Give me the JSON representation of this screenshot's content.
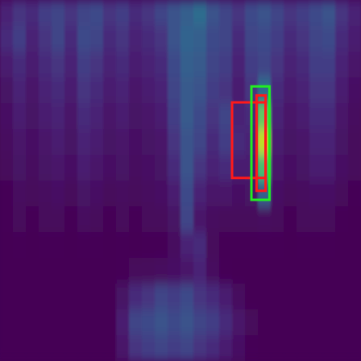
{
  "chart_data": {
    "type": "heatmap",
    "tick_labels": false,
    "xlim": [
      0,
      28
    ],
    "ylim": [
      14,
      0
    ],
    "color_range": [
      0,
      1
    ],
    "cells": [
      [
        0.1,
        0.15,
        0.12,
        0.18,
        0.2,
        0.15,
        0.2,
        0.22,
        0.15,
        0.18,
        0.12,
        0.15,
        0.2,
        0.25,
        0.3,
        0.35,
        0.25,
        0.2,
        0.15,
        0.22,
        0.25,
        0.2,
        0.15,
        0.18,
        0.22,
        0.25,
        0.15,
        0.1
      ],
      [
        0.12,
        0.18,
        0.1,
        0.15,
        0.2,
        0.12,
        0.22,
        0.2,
        0.12,
        0.15,
        0.1,
        0.12,
        0.15,
        0.25,
        0.32,
        0.3,
        0.22,
        0.2,
        0.12,
        0.2,
        0.22,
        0.18,
        0.12,
        0.15,
        0.2,
        0.22,
        0.12,
        0.08
      ],
      [
        0.08,
        0.12,
        0.08,
        0.12,
        0.15,
        0.1,
        0.18,
        0.15,
        0.1,
        0.12,
        0.08,
        0.1,
        0.12,
        0.22,
        0.3,
        0.28,
        0.2,
        0.18,
        0.1,
        0.18,
        0.2,
        0.15,
        0.1,
        0.12,
        0.18,
        0.18,
        0.1,
        0.06
      ],
      [
        0.05,
        0.1,
        0.06,
        0.1,
        0.12,
        0.08,
        0.15,
        0.12,
        0.08,
        0.1,
        0.06,
        0.08,
        0.1,
        0.2,
        0.28,
        0.25,
        0.18,
        0.15,
        0.08,
        0.15,
        0.35,
        0.12,
        0.08,
        0.1,
        0.15,
        0.15,
        0.08,
        0.04
      ],
      [
        0.04,
        0.08,
        0.05,
        0.08,
        0.1,
        0.06,
        0.12,
        0.1,
        0.06,
        0.08,
        0.05,
        0.06,
        0.08,
        0.18,
        0.28,
        0.22,
        0.15,
        0.2,
        0.1,
        0.12,
        0.75,
        0.1,
        0.06,
        0.08,
        0.12,
        0.12,
        0.06,
        0.03
      ],
      [
        0.03,
        0.06,
        0.04,
        0.06,
        0.08,
        0.05,
        0.1,
        0.08,
        0.05,
        0.06,
        0.04,
        0.05,
        0.06,
        0.15,
        0.25,
        0.2,
        0.12,
        0.18,
        0.12,
        0.1,
        0.9,
        0.08,
        0.05,
        0.06,
        0.1,
        0.1,
        0.05,
        0.02
      ],
      [
        0.02,
        0.05,
        0.03,
        0.05,
        0.06,
        0.04,
        0.08,
        0.06,
        0.04,
        0.05,
        0.03,
        0.04,
        0.05,
        0.12,
        0.25,
        0.15,
        0.1,
        0.12,
        0.08,
        0.08,
        0.7,
        0.06,
        0.04,
        0.05,
        0.08,
        0.08,
        0.04,
        0.02
      ],
      [
        0.01,
        0.03,
        0.02,
        0.03,
        0.04,
        0.02,
        0.05,
        0.04,
        0.02,
        0.03,
        0.02,
        0.03,
        0.04,
        0.08,
        0.22,
        0.1,
        0.06,
        0.06,
        0.04,
        0.05,
        0.3,
        0.04,
        0.02,
        0.03,
        0.04,
        0.04,
        0.02,
        0.01
      ],
      [
        0.01,
        0.02,
        0.01,
        0.02,
        0.02,
        0.01,
        0.03,
        0.02,
        0.01,
        0.02,
        0.01,
        0.02,
        0.02,
        0.05,
        0.2,
        0.06,
        0.03,
        0.02,
        0.02,
        0.02,
        0.03,
        0.02,
        0.01,
        0.02,
        0.02,
        0.02,
        0.01,
        0
      ],
      [
        0,
        0.01,
        0,
        0.01,
        0.01,
        0,
        0.01,
        0.01,
        0,
        0.01,
        0,
        0.01,
        0.01,
        0.03,
        0.1,
        0.12,
        0.02,
        0.01,
        0.01,
        0.01,
        0.01,
        0.01,
        0,
        0.01,
        0.01,
        0.01,
        0,
        0
      ],
      [
        0,
        0,
        0,
        0,
        0,
        0,
        0,
        0,
        0,
        0.01,
        0.02,
        0.02,
        0.03,
        0.04,
        0.06,
        0.1,
        0.03,
        0.01,
        0,
        0,
        0,
        0,
        0,
        0,
        0,
        0,
        0,
        0
      ],
      [
        0,
        0,
        0,
        0,
        0,
        0,
        0,
        0,
        0,
        0.05,
        0.12,
        0.15,
        0.2,
        0.18,
        0.22,
        0.15,
        0.12,
        0.08,
        0.03,
        0,
        0,
        0,
        0,
        0,
        0,
        0,
        0,
        0
      ],
      [
        0,
        0,
        0,
        0,
        0,
        0,
        0,
        0,
        0,
        0.08,
        0.2,
        0.22,
        0.25,
        0.22,
        0.25,
        0.2,
        0.18,
        0.12,
        0.06,
        0.02,
        0,
        0,
        0,
        0,
        0,
        0,
        0,
        0
      ],
      [
        0,
        0,
        0,
        0,
        0,
        0,
        0,
        0,
        0,
        0.06,
        0.15,
        0.18,
        0.2,
        0.18,
        0.2,
        0.15,
        0.12,
        0.08,
        0.04,
        0.01,
        0,
        0,
        0,
        0,
        0,
        0,
        0,
        0
      ]
    ],
    "boxes": [
      {
        "color": "#ff1a1a",
        "x": [
          18,
          20.6
        ],
        "y": [
          3.97,
          6.9
        ]
      },
      {
        "color": "#ff1a1a",
        "x": [
          19.9,
          20.6
        ],
        "y": [
          3.7,
          7.4
        ]
      },
      {
        "color": "#22ee22",
        "x": [
          19.5,
          20.9
        ],
        "y": [
          3.35,
          7.75
        ]
      }
    ]
  }
}
